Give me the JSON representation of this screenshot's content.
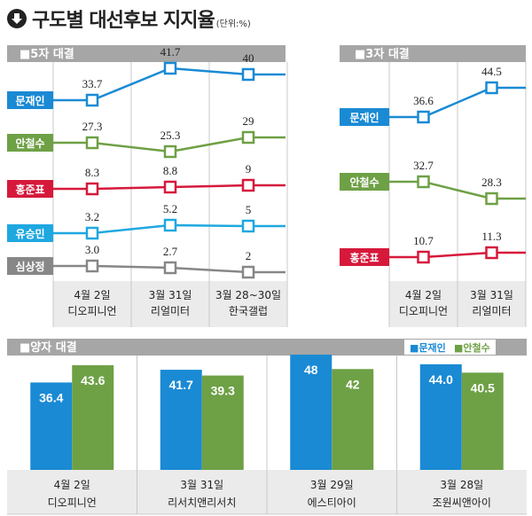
{
  "header": {
    "title": "구도별 대선후보 지지율",
    "unit": "(단위:%)",
    "icon": "arrow-down-circle-icon"
  },
  "colors": {
    "moon": "#1a8ad4",
    "ahn": "#6ea045",
    "hong": "#d6193b",
    "yoo": "#1fa8e0",
    "sim": "#878787",
    "header_bg": "#a6a6a6",
    "cat_bg": "#ebebeb"
  },
  "chart_data": [
    {
      "type": "line",
      "title": "■5자 대결",
      "categories": [
        {
          "date": "4월 2일",
          "pollster": "디오피니언"
        },
        {
          "date": "3월 31일",
          "pollster": "리얼미터"
        },
        {
          "date": "3월 28~30일",
          "pollster": "한국갤럽"
        }
      ],
      "series": [
        {
          "name": "문재인",
          "key": "moon",
          "values": [
            33.7,
            41.7,
            40
          ],
          "labels": [
            "33.7",
            "41.7",
            "40"
          ]
        },
        {
          "name": "안철수",
          "key": "ahn",
          "values": [
            27.3,
            25.3,
            29
          ],
          "labels": [
            "27.3",
            "25.3",
            "29"
          ]
        },
        {
          "name": "홍준표",
          "key": "hong",
          "values": [
            8.3,
            8.8,
            9
          ],
          "labels": [
            "8.3",
            "8.8",
            "9"
          ]
        },
        {
          "name": "유승민",
          "key": "yoo",
          "values": [
            3.2,
            5.2,
            5
          ],
          "labels": [
            "3.2",
            "5.2",
            "5"
          ]
        },
        {
          "name": "심상정",
          "key": "sim",
          "values": [
            3.0,
            2.7,
            2
          ],
          "labels": [
            "3.0",
            "2.7",
            "2"
          ]
        }
      ],
      "unit": "%"
    },
    {
      "type": "line",
      "title": "■3자 대결",
      "categories": [
        {
          "date": "4월 2일",
          "pollster": "디오피니언"
        },
        {
          "date": "3월 31일",
          "pollster": "리얼미터"
        }
      ],
      "series": [
        {
          "name": "문재인",
          "key": "moon",
          "values": [
            36.6,
            44.5
          ],
          "labels": [
            "36.6",
            "44.5"
          ]
        },
        {
          "name": "안철수",
          "key": "ahn",
          "values": [
            32.7,
            28.3
          ],
          "labels": [
            "32.7",
            "28.3"
          ]
        },
        {
          "name": "홍준표",
          "key": "hong",
          "values": [
            10.7,
            11.3
          ],
          "labels": [
            "10.7",
            "11.3"
          ]
        }
      ],
      "unit": "%"
    },
    {
      "type": "bar",
      "title": "■양자 대결",
      "legend": [
        {
          "label": "■문재인",
          "key": "moon"
        },
        {
          "label": "■안철수",
          "key": "ahn"
        }
      ],
      "legend_position": "top-right",
      "categories": [
        {
          "date": "4월 2일",
          "pollster": "디오피니언"
        },
        {
          "date": "3월 31일",
          "pollster": "리서치앤리서치"
        },
        {
          "date": "3월 29일",
          "pollster": "에스티아이"
        },
        {
          "date": "3월 28일",
          "pollster": "조원씨앤아이"
        }
      ],
      "series": [
        {
          "name": "문재인",
          "key": "moon",
          "values": [
            36.4,
            41.7,
            48,
            44.0
          ],
          "labels": [
            "36.4",
            "41.7",
            "48",
            "44.0"
          ]
        },
        {
          "name": "안철수",
          "key": "ahn",
          "values": [
            43.6,
            39.3,
            42,
            40.5
          ],
          "labels": [
            "43.6",
            "39.3",
            "42",
            "40.5"
          ]
        }
      ],
      "unit": "%"
    }
  ]
}
